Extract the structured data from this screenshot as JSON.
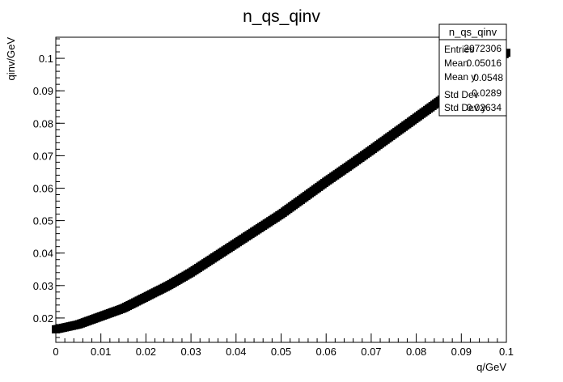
{
  "chart_data": {
    "type": "scatter",
    "title": "n_qs_qinv",
    "xlabel": "q/GeV",
    "ylabel": "qinv/GeV",
    "xlim": [
      0,
      0.1
    ],
    "ylim": [
      0.0125,
      0.1065
    ],
    "xticks": [
      0,
      0.01,
      0.02,
      0.03,
      0.04,
      0.05,
      0.06,
      0.07,
      0.08,
      0.09,
      0.1
    ],
    "yticks": [
      0.02,
      0.03,
      0.04,
      0.05,
      0.06,
      0.07,
      0.08,
      0.09,
      0.1
    ],
    "xtick_labels": [
      "0",
      "0.01",
      "0.02",
      "0.03",
      "0.04",
      "0.05",
      "0.06",
      "0.07",
      "0.08",
      "0.09",
      "0.1"
    ],
    "ytick_labels": [
      "0.02",
      "0.03",
      "0.04",
      "0.05",
      "0.06",
      "0.07",
      "0.08",
      "0.09",
      "0.1"
    ],
    "grid": false,
    "marker_color": "#000000",
    "series": [
      {
        "x": [
          0,
          0.005,
          0.01,
          0.015,
          0.02,
          0.025,
          0.03,
          0.035,
          0.04,
          0.045,
          0.05,
          0.055,
          0.06,
          0.065,
          0.07,
          0.075,
          0.08,
          0.085,
          0.09,
          0.095,
          0.1
        ],
        "y": [
          0.0165,
          0.018,
          0.0205,
          0.023,
          0.0265,
          0.03,
          0.034,
          0.0385,
          0.043,
          0.0475,
          0.052,
          0.057,
          0.062,
          0.0668,
          0.0717,
          0.0767,
          0.0817,
          0.0867,
          0.0917,
          0.0967,
          0.1017
        ]
      }
    ],
    "stats_box": {
      "title": "n_qs_qinv",
      "placement": "top-right",
      "rows": [
        {
          "label": "Entries",
          "value": "2072306"
        },
        {
          "label": "Mean",
          "value": "0.05016"
        },
        {
          "label": "Mean y",
          "value": "0.0548"
        },
        {
          "label": "Std Dev",
          "value": "0.0289"
        },
        {
          "label": "Std Dev y",
          "value": "0.02634"
        }
      ]
    }
  }
}
